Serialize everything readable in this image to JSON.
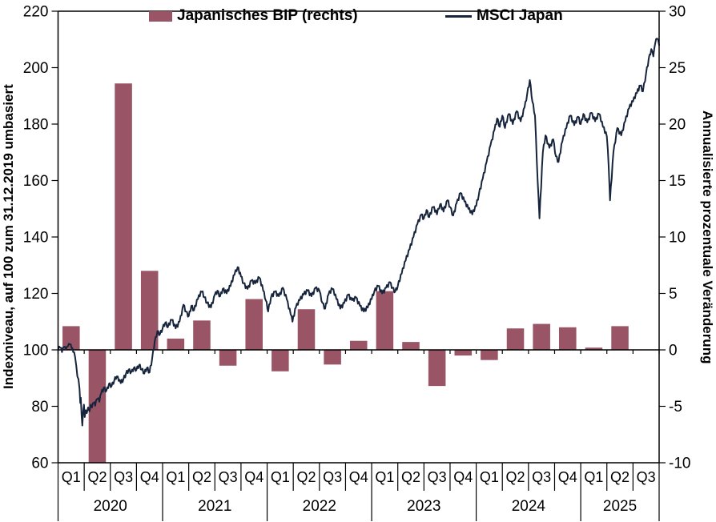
{
  "chart_data": {
    "type": "combo (bar + line, dual axis)",
    "title": "",
    "legend": [
      {
        "label": "Japanisches BIP (rechts)",
        "marker": "bar",
        "color": "#995466"
      },
      {
        "label": "MSCI Japan",
        "marker": "line",
        "color": "#16243C"
      }
    ],
    "left_axis": {
      "title": "Indexniveau, auf 100 zum 31.12.2019 umbasiert",
      "min": 60,
      "max": 220,
      "step": 20
    },
    "right_axis": {
      "title": "Annualisierte prozentuale Veränderung",
      "min": -10,
      "max": 30,
      "step": 5
    },
    "categories": [
      {
        "year": "2020",
        "quarters": [
          "Q1",
          "Q2",
          "Q3",
          "Q4"
        ]
      },
      {
        "year": "2021",
        "quarters": [
          "Q1",
          "Q2",
          "Q3",
          "Q4"
        ]
      },
      {
        "year": "2022",
        "quarters": [
          "Q1",
          "Q2",
          "Q3",
          "Q4"
        ]
      },
      {
        "year": "2023",
        "quarters": [
          "Q1",
          "Q2",
          "Q3",
          "Q4"
        ]
      },
      {
        "year": "2024",
        "quarters": [
          "Q1",
          "Q2",
          "Q3",
          "Q4"
        ]
      },
      {
        "year": "2025",
        "quarters": [
          "Q1",
          "Q2",
          "Q3"
        ]
      }
    ],
    "series": [
      {
        "name": "Japanisches BIP (rechts)",
        "type": "bar",
        "axis": "right",
        "values": [
          2.1,
          -10,
          23.6,
          7.0,
          1.0,
          2.6,
          -1.4,
          4.5,
          -1.9,
          3.6,
          -1.3,
          0.8,
          5.2,
          0.7,
          -3.2,
          -0.5,
          -0.9,
          1.9,
          2.3,
          2.0,
          0.2,
          2.1,
          null
        ],
        "note": "Q2-2020 bar is clipped at the -10 axis minimum"
      },
      {
        "name": "MSCI Japan",
        "type": "line",
        "axis": "left",
        "points": [
          [
            0.0,
            100.0
          ],
          [
            0.08,
            100.8
          ],
          [
            0.15,
            99.2
          ],
          [
            0.22,
            101.0
          ],
          [
            0.3,
            100.2
          ],
          [
            0.38,
            101.3
          ],
          [
            0.45,
            102.0
          ],
          [
            0.52,
            100.6
          ],
          [
            0.58,
            99.2
          ],
          [
            0.65,
            97.6
          ],
          [
            0.7,
            94.2
          ],
          [
            0.74,
            90.6
          ],
          [
            0.78,
            89.6
          ],
          [
            0.82,
            86.2
          ],
          [
            0.85,
            81.2
          ],
          [
            0.87,
            83.0
          ],
          [
            0.9,
            76.6
          ],
          [
            0.93,
            73.2
          ],
          [
            0.96,
            78.2
          ],
          [
            0.99,
            80.6
          ],
          [
            1.02,
            76.2
          ],
          [
            1.06,
            78.6
          ],
          [
            1.1,
            77.6
          ],
          [
            1.15,
            79.6
          ],
          [
            1.2,
            78.2
          ],
          [
            1.25,
            80.6
          ],
          [
            1.3,
            79.6
          ],
          [
            1.36,
            81.2
          ],
          [
            1.42,
            80.2
          ],
          [
            1.5,
            82.6
          ],
          [
            1.58,
            81.6
          ],
          [
            1.65,
            84.6
          ],
          [
            1.75,
            86.6
          ],
          [
            1.85,
            85.6
          ],
          [
            1.95,
            88.0
          ],
          [
            2.05,
            87.2
          ],
          [
            2.15,
            89.2
          ],
          [
            2.25,
            90.6
          ],
          [
            2.32,
            89.0
          ],
          [
            2.4,
            88.2
          ],
          [
            2.5,
            89.6
          ],
          [
            2.6,
            91.6
          ],
          [
            2.7,
            93.0
          ],
          [
            2.8,
            92.2
          ],
          [
            2.9,
            93.6
          ],
          [
            3.0,
            93.0
          ],
          [
            3.1,
            94.6
          ],
          [
            3.2,
            93.0
          ],
          [
            3.3,
            91.6
          ],
          [
            3.4,
            93.6
          ],
          [
            3.5,
            92.0
          ],
          [
            3.6,
            97.0
          ],
          [
            3.7,
            103.0
          ],
          [
            3.8,
            106.6
          ],
          [
            3.9,
            105.6
          ],
          [
            4.0,
            107.6
          ],
          [
            4.1,
            109.6
          ],
          [
            4.2,
            108.0
          ],
          [
            4.35,
            110.6
          ],
          [
            4.5,
            107.6
          ],
          [
            4.65,
            110.0
          ],
          [
            4.8,
            116.0
          ],
          [
            4.9,
            113.6
          ],
          [
            5.0,
            112.0
          ],
          [
            5.1,
            115.6
          ],
          [
            5.2,
            114.0
          ],
          [
            5.35,
            118.0
          ],
          [
            5.5,
            120.6
          ],
          [
            5.6,
            118.6
          ],
          [
            5.7,
            116.6
          ],
          [
            5.85,
            115.0
          ],
          [
            6.0,
            119.6
          ],
          [
            6.1,
            121.0
          ],
          [
            6.2,
            119.0
          ],
          [
            6.3,
            121.6
          ],
          [
            6.45,
            120.0
          ],
          [
            6.6,
            122.6
          ],
          [
            6.75,
            126.6
          ],
          [
            6.87,
            129.3
          ],
          [
            7.0,
            126.0
          ],
          [
            7.1,
            123.6
          ],
          [
            7.25,
            121.6
          ],
          [
            7.4,
            124.6
          ],
          [
            7.55,
            123.6
          ],
          [
            7.7,
            125.6
          ],
          [
            7.85,
            121.0
          ],
          [
            7.95,
            117.5
          ],
          [
            8.04,
            113.6
          ],
          [
            8.15,
            118.6
          ],
          [
            8.3,
            120.6
          ],
          [
            8.45,
            119.0
          ],
          [
            8.6,
            122.0
          ],
          [
            8.75,
            118.0
          ],
          [
            8.9,
            112.6
          ],
          [
            8.97,
            110.0
          ],
          [
            9.1,
            115.0
          ],
          [
            9.25,
            117.6
          ],
          [
            9.4,
            119.6
          ],
          [
            9.55,
            121.0
          ],
          [
            9.7,
            119.0
          ],
          [
            9.85,
            122.0
          ],
          [
            10.0,
            121.0
          ],
          [
            10.12,
            116.6
          ],
          [
            10.22,
            114.6
          ],
          [
            10.35,
            119.6
          ],
          [
            10.5,
            121.6
          ],
          [
            10.65,
            118.0
          ],
          [
            10.8,
            114.6
          ],
          [
            10.95,
            116.6
          ],
          [
            11.1,
            119.6
          ],
          [
            11.25,
            117.6
          ],
          [
            11.4,
            118.6
          ],
          [
            11.55,
            115.6
          ],
          [
            11.7,
            113.6
          ],
          [
            11.85,
            115.0
          ],
          [
            12.0,
            118.0
          ],
          [
            12.1,
            120.6
          ],
          [
            12.25,
            122.6
          ],
          [
            12.4,
            120.0
          ],
          [
            12.55,
            122.0
          ],
          [
            12.7,
            124.0
          ],
          [
            12.8,
            122.0
          ],
          [
            12.9,
            120.6
          ],
          [
            13.0,
            122.6
          ],
          [
            13.15,
            127.0
          ],
          [
            13.3,
            131.6
          ],
          [
            13.45,
            135.6
          ],
          [
            13.6,
            140.0
          ],
          [
            13.75,
            144.6
          ],
          [
            13.9,
            148.0
          ],
          [
            14.0,
            146.6
          ],
          [
            14.1,
            149.6
          ],
          [
            14.2,
            147.0
          ],
          [
            14.35,
            150.6
          ],
          [
            14.5,
            148.0
          ],
          [
            14.62,
            151.6
          ],
          [
            14.75,
            149.0
          ],
          [
            14.9,
            153.0
          ],
          [
            15.0,
            150.6
          ],
          [
            15.12,
            147.6
          ],
          [
            15.25,
            152.0
          ],
          [
            15.4,
            155.6
          ],
          [
            15.55,
            152.6
          ],
          [
            15.7,
            150.0
          ],
          [
            15.85,
            148.0
          ],
          [
            16.0,
            151.0
          ],
          [
            16.1,
            155.0
          ],
          [
            16.25,
            160.6
          ],
          [
            16.4,
            166.6
          ],
          [
            16.55,
            172.6
          ],
          [
            16.7,
            178.0
          ],
          [
            16.8,
            182.0
          ],
          [
            16.9,
            179.0
          ],
          [
            17.0,
            183.0
          ],
          [
            17.1,
            178.6
          ],
          [
            17.25,
            183.6
          ],
          [
            17.4,
            180.0
          ],
          [
            17.55,
            184.6
          ],
          [
            17.7,
            181.0
          ],
          [
            17.85,
            186.0
          ],
          [
            17.95,
            190.6
          ],
          [
            18.05,
            195.6
          ],
          [
            18.15,
            188.0
          ],
          [
            18.25,
            183.0
          ],
          [
            18.35,
            160.0
          ],
          [
            18.42,
            146.6
          ],
          [
            18.55,
            170.0
          ],
          [
            18.65,
            176.0
          ],
          [
            18.8,
            171.6
          ],
          [
            18.95,
            174.6
          ],
          [
            19.05,
            168.6
          ],
          [
            19.15,
            166.6
          ],
          [
            19.3,
            174.0
          ],
          [
            19.45,
            178.6
          ],
          [
            19.6,
            183.0
          ],
          [
            19.75,
            179.6
          ],
          [
            19.9,
            182.6
          ],
          [
            20.0,
            180.0
          ],
          [
            20.1,
            183.6
          ],
          [
            20.25,
            180.6
          ],
          [
            20.4,
            184.0
          ],
          [
            20.55,
            181.0
          ],
          [
            20.7,
            183.6
          ],
          [
            20.85,
            179.0
          ],
          [
            21.0,
            175.6
          ],
          [
            21.07,
            165.0
          ],
          [
            21.12,
            153.0
          ],
          [
            21.25,
            170.0
          ],
          [
            21.4,
            178.6
          ],
          [
            21.55,
            176.0
          ],
          [
            21.7,
            181.0
          ],
          [
            21.85,
            185.6
          ],
          [
            22.0,
            188.0
          ],
          [
            22.15,
            191.0
          ],
          [
            22.28,
            193.6
          ],
          [
            22.38,
            191.6
          ],
          [
            22.5,
            198.0
          ],
          [
            22.6,
            203.0
          ],
          [
            22.7,
            206.6
          ],
          [
            22.78,
            204.0
          ],
          [
            22.85,
            208.6
          ],
          [
            22.92,
            210.3
          ],
          [
            23.0,
            208.0
          ]
        ]
      }
    ],
    "layout": {
      "legend_position": "top",
      "grid": "off",
      "plot_border": "full box",
      "zero_line": "drawn across plot with quarter tick marks"
    }
  },
  "colors": {
    "bar": "#995466",
    "line": "#16243C",
    "axis": "#000000",
    "text": "#000000",
    "background": "#FFFFFF"
  }
}
